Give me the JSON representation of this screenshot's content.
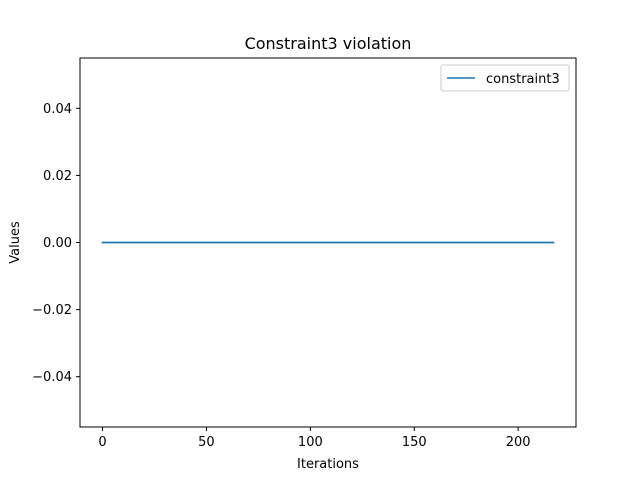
{
  "chart_data": {
    "type": "line",
    "title": "Constraint3 violation",
    "xlabel": "Iterations",
    "ylabel": "Values",
    "xlim": [
      -10.85,
      227.85
    ],
    "ylim": [
      -0.055,
      0.055
    ],
    "x_ticks": [
      0,
      50,
      100,
      150,
      200
    ],
    "x_tick_labels": [
      "0",
      "50",
      "100",
      "150",
      "200"
    ],
    "y_ticks": [
      -0.04,
      -0.02,
      0.0,
      0.02,
      0.04
    ],
    "y_tick_labels": [
      "−0.04",
      "−0.02",
      "0.00",
      "0.02",
      "0.04"
    ],
    "grid": false,
    "legend_position": "top-right",
    "series": [
      {
        "name": "constraint3",
        "color": "#1f77b4",
        "x": [
          0,
          217
        ],
        "y": [
          0.0,
          0.0
        ]
      }
    ]
  }
}
